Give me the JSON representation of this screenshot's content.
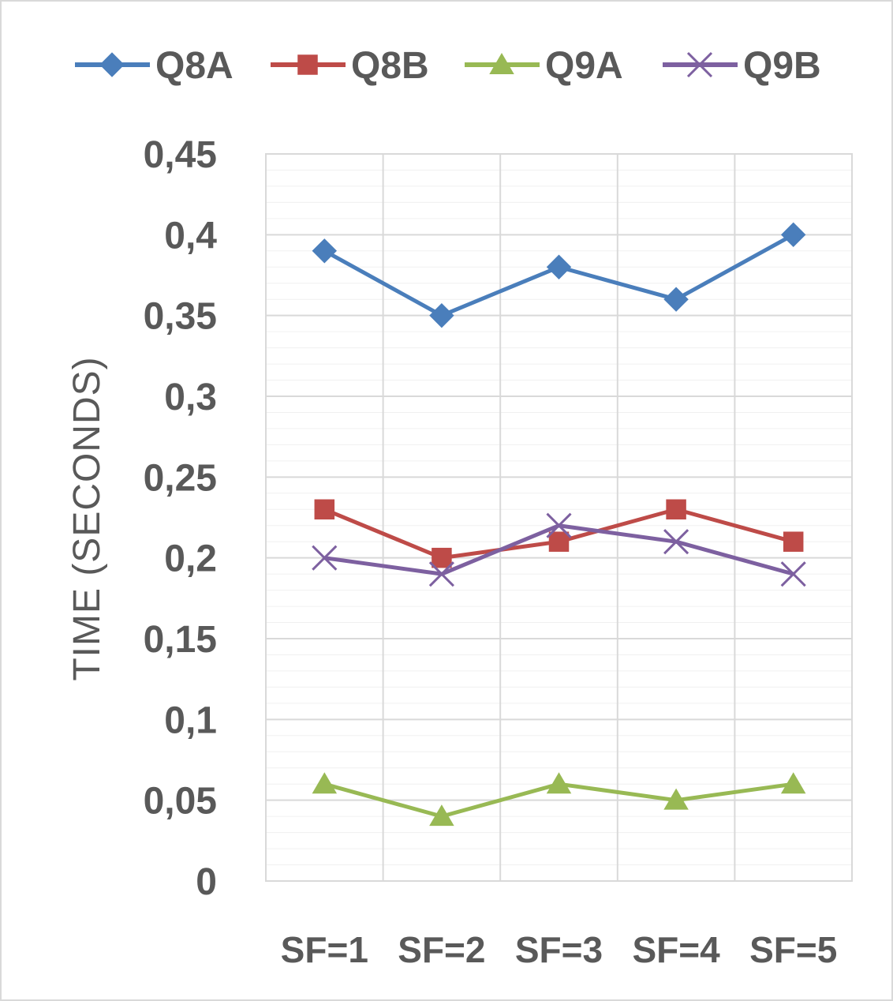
{
  "chart_data": {
    "type": "line",
    "title": "",
    "xlabel": "",
    "ylabel": "TIME (SECONDS)",
    "categories": [
      "SF=1",
      "SF=2",
      "SF=3",
      "SF=4",
      "SF=5"
    ],
    "y_ticks": [
      "0",
      "0,05",
      "0,1",
      "0,15",
      "0,2",
      "0,25",
      "0,3",
      "0,35",
      "0,4",
      "0,45"
    ],
    "y_tick_values": [
      0,
      0.05,
      0.1,
      0.15,
      0.2,
      0.25,
      0.3,
      0.35,
      0.4,
      0.45
    ],
    "ylim": [
      0,
      0.45
    ],
    "minor_grid_step": 0.01,
    "grid": true,
    "legend_position": "top",
    "series": [
      {
        "name": "Q8A",
        "values": [
          0.39,
          0.35,
          0.38,
          0.36,
          0.4
        ],
        "color": "#4a7ebb",
        "marker": "diamond"
      },
      {
        "name": "Q8B",
        "values": [
          0.23,
          0.2,
          0.21,
          0.23,
          0.21
        ],
        "color": "#be4b48",
        "marker": "square"
      },
      {
        "name": "Q9A",
        "values": [
          0.06,
          0.04,
          0.06,
          0.05,
          0.06
        ],
        "color": "#98b954",
        "marker": "triangle"
      },
      {
        "name": "Q9B",
        "values": [
          0.2,
          0.19,
          0.22,
          0.21,
          0.19
        ],
        "color": "#7d60a0",
        "marker": "x"
      }
    ]
  }
}
